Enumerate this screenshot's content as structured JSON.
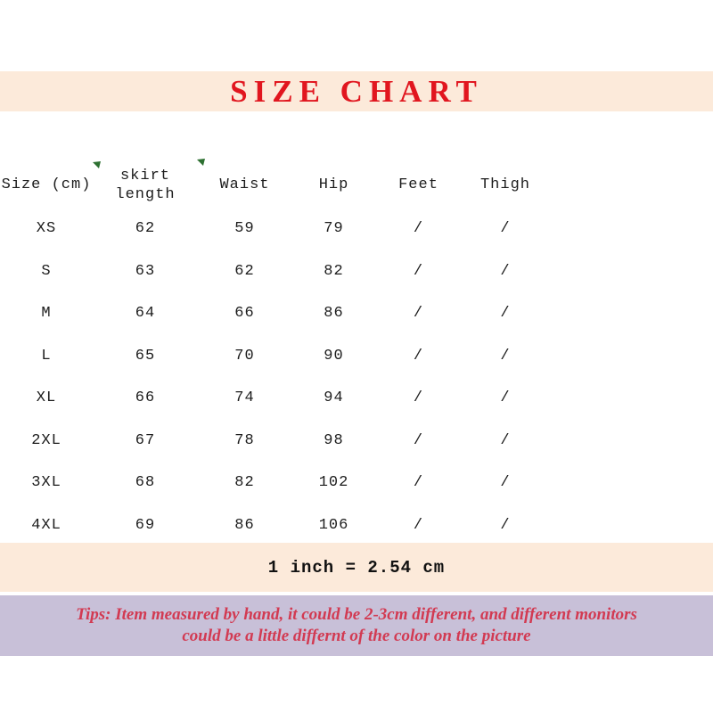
{
  "title": "SIZE CHART",
  "table": {
    "headers": [
      "Size (cm)",
      "skirt length",
      "Waist",
      "Hip",
      "Feet",
      "Thigh"
    ],
    "rows": [
      [
        "XS",
        "62",
        "59",
        "79",
        "/",
        "/"
      ],
      [
        "S",
        "63",
        "62",
        "82",
        "/",
        "/"
      ],
      [
        "M",
        "64",
        "66",
        "86",
        "/",
        "/"
      ],
      [
        "L",
        "65",
        "70",
        "90",
        "/",
        "/"
      ],
      [
        "XL",
        "66",
        "74",
        "94",
        "/",
        "/"
      ],
      [
        "2XL",
        "67",
        "78",
        "98",
        "/",
        "/"
      ],
      [
        "3XL",
        "68",
        "82",
        "102",
        "/",
        "/"
      ],
      [
        "4XL",
        "69",
        "86",
        "106",
        "/",
        "/"
      ]
    ]
  },
  "note": "1 inch = 2.54 cm",
  "tips": {
    "line1": "Tips: Item measured by hand, it could be 2-3cm different, and different monitors",
    "line2": "could be a little differnt of the color on the picture"
  },
  "icons": {
    "marker1": "green-corner-marker-icon",
    "marker2": "green-corner-marker-icon"
  },
  "colors": {
    "peach": "#fceada",
    "purple": "#c8c0d8",
    "title-red": "#e1161f",
    "tips-red": "#d23a52",
    "marker-green": "#2d7031",
    "table-ink": "#1c1c1c"
  }
}
